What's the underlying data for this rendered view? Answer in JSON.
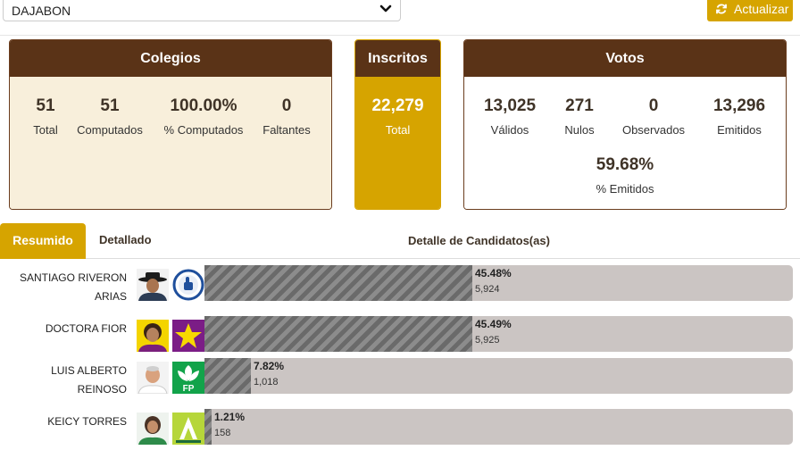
{
  "header": {
    "province_select": "DAJABON",
    "refresh_label": "Actualizar"
  },
  "colegios": {
    "title": "Colegios",
    "stats": [
      {
        "value": "51",
        "label": "Total"
      },
      {
        "value": "51",
        "label": "Computados"
      },
      {
        "value": "100.00%",
        "label": "% Computados"
      },
      {
        "value": "0",
        "label": "Faltantes"
      }
    ]
  },
  "inscritos": {
    "title": "Inscritos",
    "value": "22,279",
    "label": "Total"
  },
  "votos": {
    "title": "Votos",
    "stats": [
      {
        "value": "13,025",
        "label": "Válidos"
      },
      {
        "value": "271",
        "label": "Nulos"
      },
      {
        "value": "0",
        "label": "Observados"
      },
      {
        "value": "13,296",
        "label": "Emitidos"
      }
    ],
    "pct_value": "59.68%",
    "pct_label": "% Emitidos"
  },
  "tabs": {
    "active": "Resumido",
    "other": "Detallado",
    "section_title": "Detalle de Candidatos(as)"
  },
  "colors": {
    "brown": "#5a3317",
    "gold": "#d6a400",
    "cream": "#f8efdb",
    "bar_bg": "#cbc5c3"
  },
  "candidates": [
    {
      "name_lines": [
        "SANTIAGO RIVERON",
        "ARIAS"
      ],
      "percent": "45.48%",
      "votes": "5,924",
      "share": 45.48,
      "logo_icon": "prm-thumb-icon"
    },
    {
      "name_lines": [
        "DOCTORA FIOR"
      ],
      "percent": "45.49%",
      "votes": "5,925",
      "share": 45.49,
      "logo_icon": "pld-star-icon"
    },
    {
      "name_lines": [
        "LUIS ALBERTO",
        "REINOSO"
      ],
      "percent": "7.82%",
      "votes": "1,018",
      "share": 7.82,
      "logo_icon": "fp-leaf-icon"
    },
    {
      "name_lines": [
        "KEICY TORRES"
      ],
      "percent": "1.21%",
      "votes": "158",
      "share": 1.21,
      "logo_icon": "alianza-pais-icon"
    }
  ]
}
